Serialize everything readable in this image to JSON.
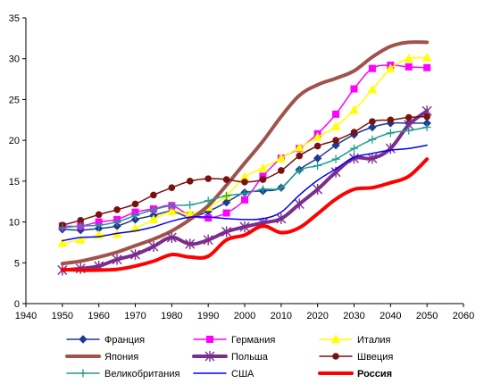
{
  "chart_data": {
    "type": "line",
    "title": "",
    "xlabel": "",
    "ylabel": "",
    "xlim": [
      1940,
      2060
    ],
    "ylim": [
      0,
      35
    ],
    "x_ticks": [
      1940,
      1950,
      1960,
      1970,
      1980,
      1990,
      2000,
      2010,
      2020,
      2030,
      2040,
      2050,
      2060
    ],
    "y_ticks": [
      0,
      5,
      10,
      15,
      20,
      25,
      30,
      35
    ],
    "grid": false,
    "legend": "bottom",
    "x": [
      1950,
      1955,
      1960,
      1965,
      1970,
      1975,
      1980,
      1985,
      1990,
      1995,
      2000,
      2005,
      2010,
      2015,
      2020,
      2025,
      2030,
      2035,
      2040,
      2045,
      2050
    ],
    "series": [
      {
        "name": "Франция",
        "color": "#1F3A93",
        "marker": "diamond",
        "width": 1.5,
        "values": [
          9.1,
          9.0,
          9.2,
          9.5,
          10.3,
          10.8,
          11.3,
          10.6,
          11.3,
          12.4,
          13.6,
          13.8,
          14.2,
          16.4,
          17.8,
          19.4,
          20.7,
          21.6,
          22.1,
          22.1,
          22.1
        ]
      },
      {
        "name": "Германия",
        "color": "#FF00FF",
        "marker": "square",
        "width": 1.5,
        "values": [
          9.5,
          9.5,
          10.0,
          10.3,
          11.2,
          11.6,
          12.0,
          10.8,
          10.5,
          11.1,
          12.7,
          15.6,
          17.8,
          19.0,
          20.8,
          23.2,
          26.3,
          28.8,
          29.2,
          29.0,
          28.9
        ]
      },
      {
        "name": "Италия",
        "color": "#FFFF00",
        "marker": "triangle",
        "width": 1.5,
        "values": [
          7.4,
          7.8,
          8.4,
          8.5,
          9.2,
          10.3,
          11.3,
          11.0,
          11.8,
          13.2,
          15.5,
          16.6,
          17.8,
          19.1,
          20.4,
          21.7,
          23.7,
          26.2,
          28.8,
          30.0,
          30.1
        ]
      },
      {
        "name": "Япония",
        "color": "#A0524D",
        "marker": "none",
        "width": 4,
        "values": [
          4.9,
          5.2,
          5.7,
          6.3,
          7.1,
          7.9,
          8.9,
          10.3,
          12.0,
          14.5,
          17.2,
          19.9,
          22.9,
          25.5,
          26.8,
          27.6,
          28.5,
          30.2,
          31.5,
          32.0,
          32.0
        ]
      },
      {
        "name": "Польша",
        "color": "#7B2D8E",
        "marker": "star",
        "width": 4,
        "values": [
          4.1,
          4.3,
          4.6,
          5.4,
          6.0,
          7.0,
          8.1,
          7.3,
          7.8,
          8.8,
          9.4,
          9.9,
          10.4,
          12.2,
          14.0,
          16.1,
          17.8,
          17.8,
          19.0,
          21.9,
          23.6
        ]
      },
      {
        "name": "Швеция",
        "color": "#7A1010",
        "marker": "circle",
        "width": 1.5,
        "values": [
          9.6,
          10.2,
          10.9,
          11.5,
          12.2,
          13.3,
          14.2,
          15.0,
          15.3,
          15.2,
          14.9,
          15.2,
          16.3,
          18.1,
          19.3,
          20.0,
          21.0,
          22.3,
          22.5,
          22.8,
          22.9
        ]
      },
      {
        "name": "Великобритания",
        "color": "#1F9C8C",
        "marker": "plus",
        "width": 1.5,
        "values": [
          9.3,
          9.5,
          9.6,
          10.0,
          10.8,
          11.5,
          12.0,
          12.1,
          12.6,
          13.2,
          13.5,
          14.0,
          14.2,
          16.3,
          16.9,
          17.7,
          19.0,
          20.1,
          20.9,
          21.2,
          21.6
        ]
      },
      {
        "name": "США",
        "color": "#0000FF",
        "marker": "none",
        "width": 1.5,
        "values": [
          7.7,
          8.1,
          8.2,
          8.6,
          8.9,
          9.4,
          10.1,
          10.6,
          10.6,
          10.4,
          10.3,
          10.4,
          11.2,
          13.3,
          15.1,
          16.5,
          17.9,
          18.4,
          18.8,
          19.0,
          19.4
        ]
      },
      {
        "name": "Россия",
        "color": "#FF0000",
        "marker": "none",
        "width": 4,
        "values": [
          4.2,
          4.1,
          4.1,
          4.2,
          4.6,
          5.2,
          6.0,
          5.7,
          5.8,
          7.8,
          8.4,
          9.5,
          8.7,
          9.3,
          11.0,
          12.8,
          14.0,
          14.2,
          14.8,
          15.6,
          17.7
        ]
      }
    ]
  }
}
